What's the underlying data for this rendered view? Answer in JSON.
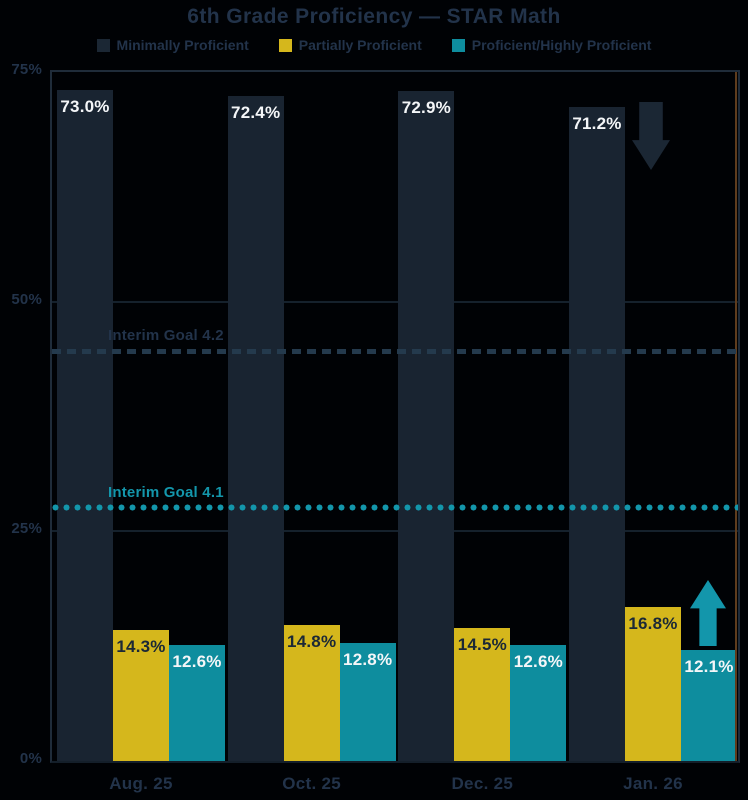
{
  "title": "6th Grade Proficiency — STAR Math",
  "legend": [
    {
      "label": "Minimally Proficient",
      "color": "#1b2734"
    },
    {
      "label": "Partially Proficient",
      "color": "#d5b71c"
    },
    {
      "label": "Proficient/Highly Proficient",
      "color": "#0e8d9e"
    }
  ],
  "colors": {
    "background": "#000205",
    "text_navy": "#22334a",
    "grid": "#15212c",
    "plot_border": "#1f2c3a",
    "white_label": "#f4f6f8",
    "edge_marker": "#5e3c1d"
  },
  "chart_data": {
    "type": "bar",
    "title": "6th Grade Proficiency — STAR Math",
    "categories": [
      "Aug. 25",
      "Oct. 25",
      "Dec. 25",
      "Jan. 26"
    ],
    "series": [
      {
        "name": "Minimally Proficient",
        "color": "#192431",
        "values": [
          73.0,
          72.4,
          72.9,
          71.2
        ],
        "labels": [
          "73.0%",
          "72.4%",
          "72.9%",
          "71.2%"
        ],
        "label_color": "#f4f6f8"
      },
      {
        "name": "Partially Proficient",
        "color": "#d5b71c",
        "values": [
          14.3,
          14.8,
          14.5,
          16.8
        ],
        "labels": [
          "14.3%",
          "14.8%",
          "14.5%",
          "16.8%"
        ],
        "label_color": "#1b2836"
      },
      {
        "name": "Proficient/Highly Proficient",
        "color": "#0e8d9e",
        "values": [
          12.6,
          12.8,
          12.6,
          12.1
        ],
        "labels": [
          "12.6%",
          "12.8%",
          "12.6%",
          "12.1%"
        ],
        "label_color": "#f4f6f8"
      }
    ],
    "ylim": [
      0,
      75
    ],
    "yticks": [
      {
        "label": "75%",
        "value": 75
      },
      {
        "label": "50%",
        "value": 50
      },
      {
        "label": "25%",
        "value": 25
      },
      {
        "label": "0%",
        "value": 0
      }
    ],
    "grid": "horizontal",
    "legend_position": "top",
    "goal_lines": [
      {
        "label": "Interim Goal 4.2",
        "value": 44.6,
        "style": "dashed",
        "color": "#243a4d",
        "label_color": "#22334a"
      },
      {
        "label": "Interim Goal 4.1",
        "value": 27.5,
        "style": "dotted",
        "color": "#1396ab",
        "label_color": "#1396ab"
      }
    ],
    "annotations": [
      {
        "shape": "arrow-down",
        "color": "#1b2734",
        "category": "Jan. 26",
        "near_series": "Minimally Proficient"
      },
      {
        "shape": "arrow-up",
        "color": "#1396ab",
        "category": "Jan. 26",
        "near_series": "Proficient/Highly Proficient"
      }
    ]
  }
}
